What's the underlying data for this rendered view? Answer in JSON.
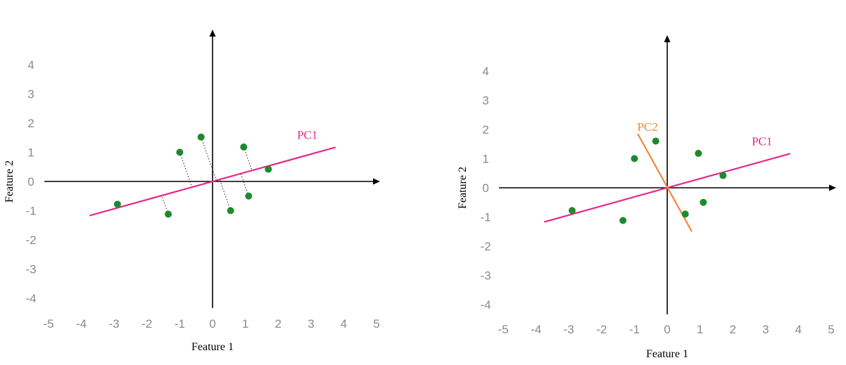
{
  "colors": {
    "pc1": "#e8288a",
    "pc2": "#f0883a",
    "points": "#1e8a2e",
    "axis": "#000000",
    "ticks": "#8a8a8a",
    "projection": "#333333"
  },
  "chart_data": [
    {
      "type": "scatter",
      "xlabel": "Feature 1",
      "ylabel": "Feature 2",
      "xlim": [
        -5,
        5
      ],
      "ylim": [
        -4,
        4
      ],
      "x_ticks": [
        "-5",
        "-4",
        "-3",
        "-2",
        "-1",
        "0",
        "1",
        "2",
        "3",
        "4",
        "5"
      ],
      "y_ticks": [
        "4",
        "3",
        "2",
        "1",
        "0",
        "-1",
        "-2",
        "-3",
        "-4"
      ],
      "points": [
        {
          "x": -2.9,
          "y": -0.78
        },
        {
          "x": -1.35,
          "y": -1.12
        },
        {
          "x": -1.0,
          "y": 1.0
        },
        {
          "x": -0.35,
          "y": 1.52
        },
        {
          "x": 0.55,
          "y": -1.0
        },
        {
          "x": 0.95,
          "y": 1.18
        },
        {
          "x": 1.1,
          "y": -0.5
        },
        {
          "x": 1.7,
          "y": 0.42
        }
      ],
      "lines": [
        {
          "name": "PC1",
          "x": [
            -3.75,
            3.75
          ],
          "y": [
            -1.17,
            1.17
          ]
        }
      ],
      "projections": true
    },
    {
      "type": "scatter",
      "xlabel": "Feature 1",
      "ylabel": "Feature 2",
      "xlim": [
        -5,
        5
      ],
      "ylim": [
        -4,
        4
      ],
      "x_ticks": [
        "-5",
        "-4",
        "-3",
        "-2",
        "-1",
        "0",
        "1",
        "2",
        "3",
        "4",
        "5"
      ],
      "y_ticks": [
        "4",
        "3",
        "2",
        "1",
        "0",
        "-1",
        "-2",
        "-3",
        "-4"
      ],
      "points": [
        {
          "x": -2.9,
          "y": -0.78
        },
        {
          "x": -1.35,
          "y": -1.12
        },
        {
          "x": -1.0,
          "y": 1.0
        },
        {
          "x": -0.35,
          "y": 1.6
        },
        {
          "x": 0.55,
          "y": -0.9
        },
        {
          "x": 0.95,
          "y": 1.18
        },
        {
          "x": 1.1,
          "y": -0.5
        },
        {
          "x": 1.7,
          "y": 0.42
        }
      ],
      "lines": [
        {
          "name": "PC1",
          "x": [
            -3.75,
            3.75
          ],
          "y": [
            -1.17,
            1.17
          ]
        },
        {
          "name": "PC2",
          "x": [
            -0.9,
            0.75
          ],
          "y": [
            1.85,
            -1.5
          ]
        }
      ],
      "projections": false
    }
  ]
}
